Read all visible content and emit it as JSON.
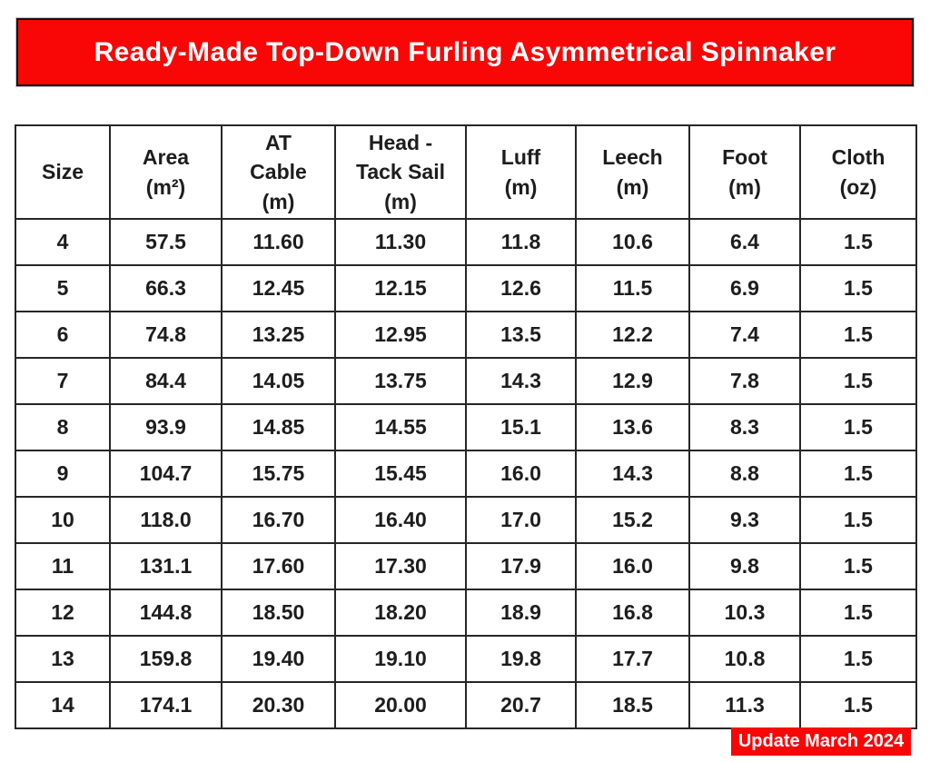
{
  "banner": {
    "title": "Ready-Made Top-Down Furling Asymmetrical Spinnaker"
  },
  "table": {
    "columns": [
      {
        "label": "Size"
      },
      {
        "label": "Area\n(m²)"
      },
      {
        "label": "AT\nCable\n(m)"
      },
      {
        "label": "Head -\nTack Sail\n(m)"
      },
      {
        "label": "Luff\n(m)"
      },
      {
        "label": "Leech\n(m)"
      },
      {
        "label": "Foot\n(m)"
      },
      {
        "label": "Cloth\n(oz)"
      }
    ],
    "rows": [
      [
        "4",
        "57.5",
        "11.60",
        "11.30",
        "11.8",
        "10.6",
        "6.4",
        "1.5"
      ],
      [
        "5",
        "66.3",
        "12.45",
        "12.15",
        "12.6",
        "11.5",
        "6.9",
        "1.5"
      ],
      [
        "6",
        "74.8",
        "13.25",
        "12.95",
        "13.5",
        "12.2",
        "7.4",
        "1.5"
      ],
      [
        "7",
        "84.4",
        "14.05",
        "13.75",
        "14.3",
        "12.9",
        "7.8",
        "1.5"
      ],
      [
        "8",
        "93.9",
        "14.85",
        "14.55",
        "15.1",
        "13.6",
        "8.3",
        "1.5"
      ],
      [
        "9",
        "104.7",
        "15.75",
        "15.45",
        "16.0",
        "14.3",
        "8.8",
        "1.5"
      ],
      [
        "10",
        "118.0",
        "16.70",
        "16.40",
        "17.0",
        "15.2",
        "9.3",
        "1.5"
      ],
      [
        "11",
        "131.1",
        "17.60",
        "17.30",
        "17.9",
        "16.0",
        "9.8",
        "1.5"
      ],
      [
        "12",
        "144.8",
        "18.50",
        "18.20",
        "18.9",
        "16.8",
        "10.3",
        "1.5"
      ],
      [
        "13",
        "159.8",
        "19.40",
        "19.10",
        "19.8",
        "17.7",
        "10.8",
        "1.5"
      ],
      [
        "14",
        "174.1",
        "20.30",
        "20.00",
        "20.7",
        "18.5",
        "11.3",
        "1.5"
      ]
    ]
  },
  "footer": {
    "update_label": "Update March 2024"
  },
  "colors": {
    "accent_red": "#f90606",
    "border_black": "#262626",
    "text": "#1d1d1d"
  }
}
